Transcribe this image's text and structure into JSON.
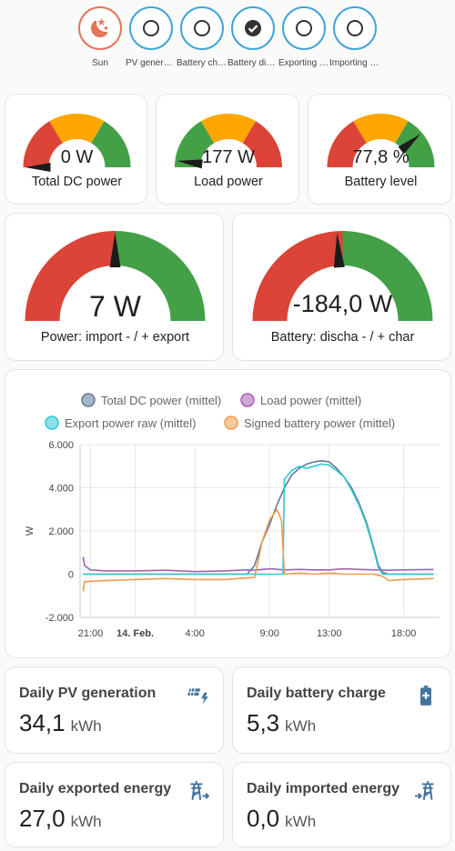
{
  "status": [
    {
      "label": "Sun",
      "icon": "weather-night-icon",
      "state": "night"
    },
    {
      "label": "PV generating",
      "icon": "circle-outline-icon",
      "state": "off"
    },
    {
      "label": "Battery charging",
      "icon": "circle-outline-icon",
      "state": "off"
    },
    {
      "label": "Battery discharging",
      "icon": "check-circle-icon",
      "state": "on"
    },
    {
      "label": "Exporting power",
      "icon": "circle-outline-icon",
      "state": "off"
    },
    {
      "label": "Importing power",
      "icon": "circle-outline-icon",
      "state": "off"
    }
  ],
  "gauges_small": [
    {
      "name": "Total DC power",
      "value": "0 W",
      "fraction": 0.0
    },
    {
      "name": "Load power",
      "value": "177 W",
      "fraction": 0.04
    },
    {
      "name": "Battery level",
      "value": "77,8 %",
      "fraction": 0.778
    }
  ],
  "gauges_large": [
    {
      "name": "Power: import - / + export",
      "value": "7 W",
      "fraction": 0.5
    },
    {
      "name": "Battery: discha - / + char",
      "value": "-184,0 W",
      "fraction": 0.48
    }
  ],
  "colors": {
    "red": "#db4437",
    "orange": "#ffa600",
    "green": "#43a047",
    "accent": "#42a5d5",
    "icon": "#44739e"
  },
  "chart_data": {
    "type": "line",
    "title": "",
    "ylabel": "W",
    "ylim": [
      -2000,
      6000
    ],
    "yticks": [
      "6.000",
      "4.000",
      "2.000",
      "0",
      "-2.000"
    ],
    "xticks": [
      "21:00",
      "14. Feb.",
      "4:00",
      "9:00",
      "13:00",
      "18:00"
    ],
    "x_hours": [
      21,
      24,
      28,
      33,
      37,
      42
    ],
    "legend_position": "top",
    "series": [
      {
        "name": "Total DC power (mittel)",
        "color": "#5f7897",
        "x": [
          20.5,
          22,
          24,
          26,
          28,
          30,
          31.5,
          32,
          32.5,
          33,
          33.5,
          34,
          34.5,
          35,
          35.5,
          36,
          36.5,
          37,
          37.5,
          38,
          38.5,
          39,
          39.5,
          40,
          40.3,
          40.6,
          41,
          42,
          44
        ],
        "y": [
          0,
          0,
          0,
          0,
          0,
          0,
          0,
          400,
          1500,
          2300,
          3200,
          4000,
          4600,
          4900,
          5100,
          5200,
          5250,
          5200,
          4900,
          4500,
          4000,
          3300,
          2400,
          1200,
          400,
          80,
          0,
          0,
          0
        ]
      },
      {
        "name": "Load power (mittel)",
        "color": "#a55fb4",
        "x": [
          20.5,
          20.6,
          21,
          22,
          24,
          26,
          28,
          30,
          31.5,
          32,
          33,
          34,
          35,
          36,
          37,
          38,
          39,
          40,
          41,
          42,
          44
        ],
        "y": [
          800,
          400,
          200,
          150,
          150,
          180,
          120,
          150,
          200,
          180,
          250,
          200,
          220,
          200,
          200,
          250,
          220,
          200,
          180,
          200,
          220
        ]
      },
      {
        "name": "Export power raw (mittel)",
        "color": "#2fc9d2",
        "x": [
          20.5,
          30,
          33,
          33.9,
          34,
          34.5,
          35,
          35.5,
          36,
          36.5,
          37,
          37.5,
          38,
          38.5,
          39,
          39.5,
          40,
          40.3,
          40.6,
          41,
          44
        ],
        "y": [
          0,
          0,
          0,
          0,
          4400,
          4800,
          5000,
          4900,
          5000,
          5100,
          5050,
          4800,
          4500,
          3900,
          3200,
          2300,
          1100,
          300,
          0,
          0,
          0
        ]
      },
      {
        "name": "Signed battery power (mittel)",
        "color": "#f29a4f",
        "x": [
          20.5,
          20.6,
          22,
          24,
          26,
          28,
          30,
          32,
          32.5,
          33,
          33.5,
          33.8,
          34,
          35,
          36,
          37,
          38,
          39,
          40,
          40.6,
          41,
          42,
          44
        ],
        "y": [
          -800,
          -350,
          -300,
          -250,
          -200,
          -250,
          -250,
          -150,
          1500,
          2500,
          3000,
          2500,
          0,
          50,
          0,
          50,
          0,
          0,
          0,
          -100,
          -300,
          -250,
          -200
        ]
      }
    ]
  },
  "energy": [
    {
      "title": "Daily PV generation",
      "value": "34,1",
      "unit": "kWh",
      "icon": "solar-power-icon"
    },
    {
      "title": "Daily battery charge",
      "value": "5,3",
      "unit": "kWh",
      "icon": "battery-plus-icon"
    },
    {
      "title": "Daily exported energy",
      "value": "27,0",
      "unit": "kWh",
      "icon": "transmission-tower-export-icon"
    },
    {
      "title": "Daily imported energy",
      "value": "0,0",
      "unit": "kWh",
      "icon": "transmission-tower-import-icon"
    }
  ]
}
